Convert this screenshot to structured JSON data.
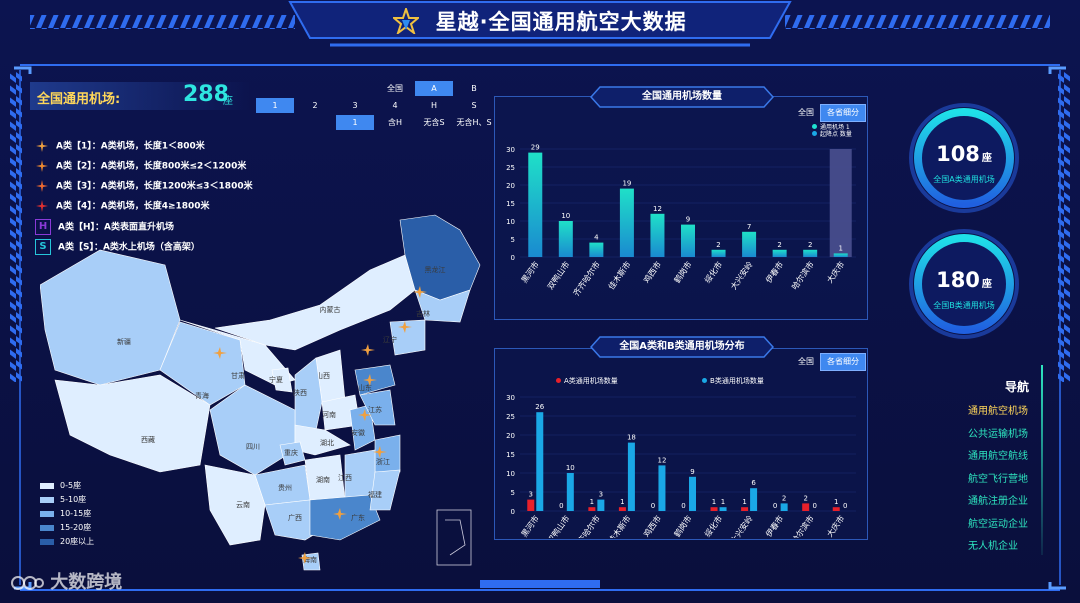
{
  "header": {
    "title": "星越·全国通用航空大数据"
  },
  "left": {
    "count_label": "全国通用机场:",
    "count_value": "288",
    "count_unit": "座",
    "grade_tabs": [
      "1",
      "2",
      "3",
      "4"
    ],
    "grade_tab_selected": 0,
    "category_tabs": [
      "全国",
      "A",
      "B"
    ],
    "category_tab_selected": 1,
    "sub_row1": [
      "3",
      "4",
      "H",
      "S"
    ],
    "sub_row2": [
      "1",
      "含H",
      "无含S",
      "无含H、S"
    ],
    "legend": [
      {
        "text": "A类【1】：A类机场，长度1＜800米",
        "icon": "plane-icon",
        "color": "#f0a040"
      },
      {
        "text": "A类【2】：A类机场，长度800米≤2＜1200米",
        "icon": "plane-icon",
        "color": "#f08a30"
      },
      {
        "text": "A类【3】：A类机场，长度1200米≤3＜1800米",
        "icon": "plane-icon",
        "color": "#f06a30"
      },
      {
        "text": "A类【4】：A类机场，长度4≥1800米",
        "icon": "plane-icon",
        "color": "#e03030"
      },
      {
        "text": "A类【H】：A类表面直升机场",
        "icon": "helipad-icon",
        "glyph": "H",
        "color": "#8a3ad8"
      },
      {
        "text": "A类【S】：A类水上机场（含高架）",
        "icon": "seaplane-icon",
        "glyph": "S",
        "color": "#26c6da"
      }
    ],
    "scale": [
      {
        "label": "0-5座",
        "color": "#dfeeff"
      },
      {
        "label": "5-10座",
        "color": "#a8cef8"
      },
      {
        "label": "10-15座",
        "color": "#7ab0ec"
      },
      {
        "label": "15-20座",
        "color": "#4a86cc"
      },
      {
        "label": "20座以上",
        "color": "#2a5ea8"
      }
    ],
    "provinces": [
      "新疆",
      "西藏",
      "青海",
      "甘肃",
      "宁夏",
      "内蒙古",
      "黑龙江",
      "吉林",
      "辽宁",
      "山西",
      "陕西",
      "山东",
      "河南",
      "四川",
      "湖北",
      "安徽",
      "江苏",
      "浙江",
      "重庆",
      "湖南",
      "江西",
      "贵州",
      "云南",
      "广西",
      "广东",
      "福建",
      "海南"
    ]
  },
  "chart1": {
    "title": "全国通用机场数量",
    "tabs": [
      "全国",
      "各省细分"
    ],
    "tab_selected": 1,
    "legend": [
      "通用机场 1",
      "起降点 数量"
    ],
    "chart_data": {
      "type": "bar",
      "categories": [
        "黑河市",
        "双鸭山市",
        "齐齐哈尔市",
        "佳木斯市",
        "鸡西市",
        "鹤岗市",
        "绥化市",
        "大兴安岭",
        "伊春市",
        "哈尔滨市",
        "大庆市"
      ],
      "values": [
        29,
        10,
        4,
        19,
        12,
        9,
        2,
        7,
        2,
        2,
        1
      ],
      "ylim": [
        0,
        30
      ],
      "yticks": [
        0,
        5,
        10,
        15,
        20,
        25,
        30
      ],
      "highlight_index": 10,
      "highlight_bar_value": 30
    }
  },
  "chart2": {
    "title": "全国A类和B类通用机场分布",
    "tabs": [
      "全国",
      "各省细分"
    ],
    "tab_selected": 1,
    "chart_data": {
      "type": "bar",
      "categories": [
        "黑河市",
        "双鸭山市",
        "齐齐哈尔市",
        "佳木斯市",
        "鸡西市",
        "鹤岗市",
        "绥化市",
        "大兴安岭",
        "伊春市",
        "哈尔滨市",
        "大庆市"
      ],
      "series": [
        {
          "name": "A类通用机场数量",
          "color": "#e8202a",
          "values": [
            3,
            0,
            1,
            1,
            0,
            0,
            1,
            1,
            0,
            2,
            1
          ]
        },
        {
          "name": "B类通用机场数量",
          "color": "#1aa8e6",
          "values": [
            26,
            10,
            3,
            18,
            12,
            9,
            1,
            6,
            2,
            0,
            0
          ]
        }
      ],
      "ylim": [
        0,
        30
      ],
      "yticks": [
        0,
        5,
        10,
        15,
        20,
        25,
        30
      ]
    }
  },
  "gauges": [
    {
      "value": "108",
      "unit": "座",
      "label": "全国A类通用机场"
    },
    {
      "value": "180",
      "unit": "座",
      "label": "全国B类通用机场"
    }
  ],
  "nav": {
    "title": "导航",
    "items": [
      {
        "label": "通用航空机场",
        "color": "#ffd75a"
      },
      {
        "label": "公共运输机场",
        "color": "#2ee6c0"
      },
      {
        "label": "通用航空航线",
        "color": "#2ee6c0"
      },
      {
        "label": "航空飞行营地",
        "color": "#2ee6c0"
      },
      {
        "label": "通航注册企业",
        "color": "#2ee6c0"
      },
      {
        "label": "航空运动企业",
        "color": "#2ee6c0"
      },
      {
        "label": "无人机企业",
        "color": "#2ee6c0"
      }
    ]
  },
  "watermark": "大数跨境"
}
